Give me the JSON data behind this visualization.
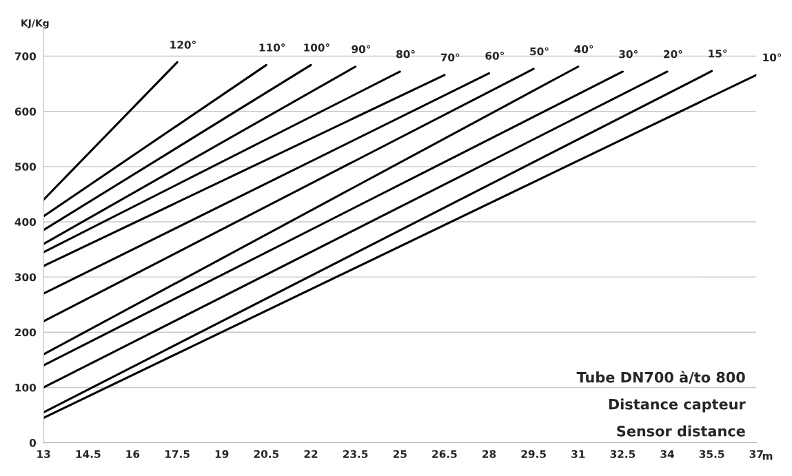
{
  "chart_data": {
    "type": "line",
    "ylabel": "KJ/Kg",
    "xlabel": "m",
    "xlim": [
      13,
      37
    ],
    "xticks": [
      13,
      14.5,
      16,
      17.5,
      19,
      20.5,
      22,
      23.5,
      25,
      26.5,
      28,
      29.5,
      31,
      32.5,
      34,
      35.5,
      37
    ],
    "ylim": [
      0,
      750
    ],
    "yticks": [
      0,
      100,
      200,
      300,
      400,
      500,
      600,
      700
    ],
    "grid": "y",
    "legend": false,
    "marker": "none",
    "line_style": "solid",
    "series": [
      {
        "name": "120°",
        "color": "#000000",
        "x": [
          13,
          17.5
        ],
        "values": [
          440,
          689
        ]
      },
      {
        "name": "110°",
        "color": "#000000",
        "x": [
          13,
          20.5
        ],
        "values": [
          410,
          684
        ]
      },
      {
        "name": "100°",
        "color": "#000000",
        "x": [
          13,
          22
        ],
        "values": [
          385,
          684
        ]
      },
      {
        "name": "90°",
        "color": "#000000",
        "x": [
          13,
          23.5
        ],
        "values": [
          360,
          681
        ]
      },
      {
        "name": "80°",
        "color": "#000000",
        "x": [
          13,
          25
        ],
        "values": [
          345,
          672
        ]
      },
      {
        "name": "70°",
        "color": "#000000",
        "x": [
          13,
          26.5
        ],
        "values": [
          320,
          666
        ]
      },
      {
        "name": "60°",
        "color": "#000000",
        "x": [
          13,
          28
        ],
        "values": [
          270,
          669
        ]
      },
      {
        "name": "50°",
        "color": "#000000",
        "x": [
          13,
          29.5
        ],
        "values": [
          220,
          677
        ]
      },
      {
        "name": "40°",
        "color": "#000000",
        "x": [
          13,
          31
        ],
        "values": [
          160,
          681
        ]
      },
      {
        "name": "30°",
        "color": "#000000",
        "x": [
          13,
          32.5
        ],
        "values": [
          140,
          672
        ]
      },
      {
        "name": "20°",
        "color": "#000000",
        "x": [
          13,
          34
        ],
        "values": [
          100,
          672
        ]
      },
      {
        "name": "15°",
        "color": "#000000",
        "x": [
          13,
          35.5
        ],
        "values": [
          55,
          673
        ]
      },
      {
        "name": "10°",
        "color": "#000000",
        "x": [
          13,
          37
        ],
        "values": [
          45,
          666
        ]
      }
    ],
    "annotations": [
      "Tube DN700 à/to 800",
      "Distance capteur",
      "Sensor distance"
    ]
  }
}
